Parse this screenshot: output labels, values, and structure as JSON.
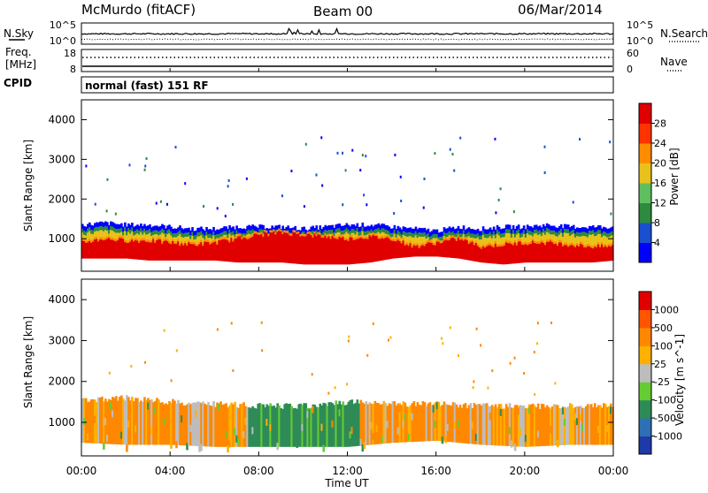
{
  "header": {
    "station": "McMurdo (fitACF)",
    "beam": "Beam 00",
    "date": "06/Mar/2014"
  },
  "top_panels": {
    "nsky_label": "N.Sky",
    "nsky_ticks": [
      "10^5",
      "10^0"
    ],
    "nsearch_label": "N.Search",
    "nsearch_ticks": [
      "10^5",
      "10^0"
    ],
    "freq_label_1": "Freq.",
    "freq_label_2": "[MHz]",
    "freq_ticks": [
      "18",
      "8"
    ],
    "nave_label": "Nave",
    "nave_ticks": [
      "60",
      "0"
    ],
    "cpid_label": "CPID",
    "cpid_text": "normal (fast) 151 RF"
  },
  "x_axis": {
    "label": "Time UT",
    "ticks": [
      "00:00",
      "04:00",
      "08:00",
      "12:00",
      "16:00",
      "20:00",
      "00:00"
    ]
  },
  "power_panel": {
    "ylabel": "Slant Range [km]",
    "yticks": [
      "4000",
      "3000",
      "2000",
      "1000"
    ],
    "colorbar_label": "Power [dB]",
    "colorbar_ticks": [
      "28",
      "24",
      "20",
      "16",
      "12",
      "8",
      "4"
    ],
    "colors": [
      "#0000ff",
      "#1a4fd0",
      "#2d8a3e",
      "#5fbf5f",
      "#e8c21a",
      "#ff8c00",
      "#ff3300",
      "#e00000"
    ]
  },
  "velocity_panel": {
    "ylabel": "Slant Range [km]",
    "yticks": [
      "4000",
      "3000",
      "2000",
      "1000"
    ],
    "colorbar_label": "Velocity [m s^-1]",
    "colorbar_ticks": [
      "1000",
      "500",
      "100",
      "25",
      "-25",
      "-100",
      "-500",
      "-1000"
    ],
    "colors": [
      "#1e3aa8",
      "#2f6fb5",
      "#2e8b57",
      "#66cc33",
      "#bdbdbd",
      "#ffb000",
      "#ff8800",
      "#ff5500",
      "#e00000"
    ]
  },
  "chart_data": {
    "type": "heatmap",
    "x": {
      "label": "Time UT",
      "range_hours": [
        0,
        24
      ]
    },
    "y": {
      "label": "Slant Range [km]",
      "range": [
        180,
        4500
      ]
    },
    "power_band": {
      "hours": [
        0,
        1,
        2,
        3,
        4,
        5,
        6,
        7,
        8,
        9,
        10,
        11,
        12,
        13,
        14,
        15,
        16,
        17,
        18,
        19,
        20,
        21,
        22,
        23,
        24
      ],
      "top_km": [
        1350,
        1400,
        1350,
        1350,
        1300,
        1250,
        1250,
        1300,
        1300,
        1300,
        1250,
        1300,
        1350,
        1350,
        1300,
        1250,
        1200,
        1300,
        1250,
        1300,
        1300,
        1350,
        1300,
        1300,
        1300
      ],
      "core_top_km": [
        900,
        1000,
        950,
        950,
        900,
        850,
        900,
        1000,
        1100,
        1150,
        1100,
        1050,
        1000,
        1050,
        1000,
        800,
        900,
        1000,
        800,
        850,
        900,
        900,
        850,
        800,
        800
      ],
      "bottom_km": [
        500,
        500,
        500,
        450,
        450,
        450,
        450,
        400,
        400,
        400,
        350,
        350,
        350,
        400,
        500,
        550,
        550,
        500,
        400,
        350,
        400,
        400,
        400,
        400,
        450
      ]
    },
    "velocity_band": {
      "hours": [
        0,
        2,
        4,
        6,
        8,
        10,
        12,
        14,
        16,
        18,
        20,
        22,
        24
      ],
      "top_km": [
        1550,
        1600,
        1500,
        1450,
        1400,
        1400,
        1500,
        1450,
        1450,
        1400,
        1400,
        1400,
        1400
      ],
      "bottom_km": [
        500,
        450,
        450,
        400,
        400,
        400,
        400,
        500,
        550,
        450,
        400,
        450,
        450
      ]
    }
  }
}
